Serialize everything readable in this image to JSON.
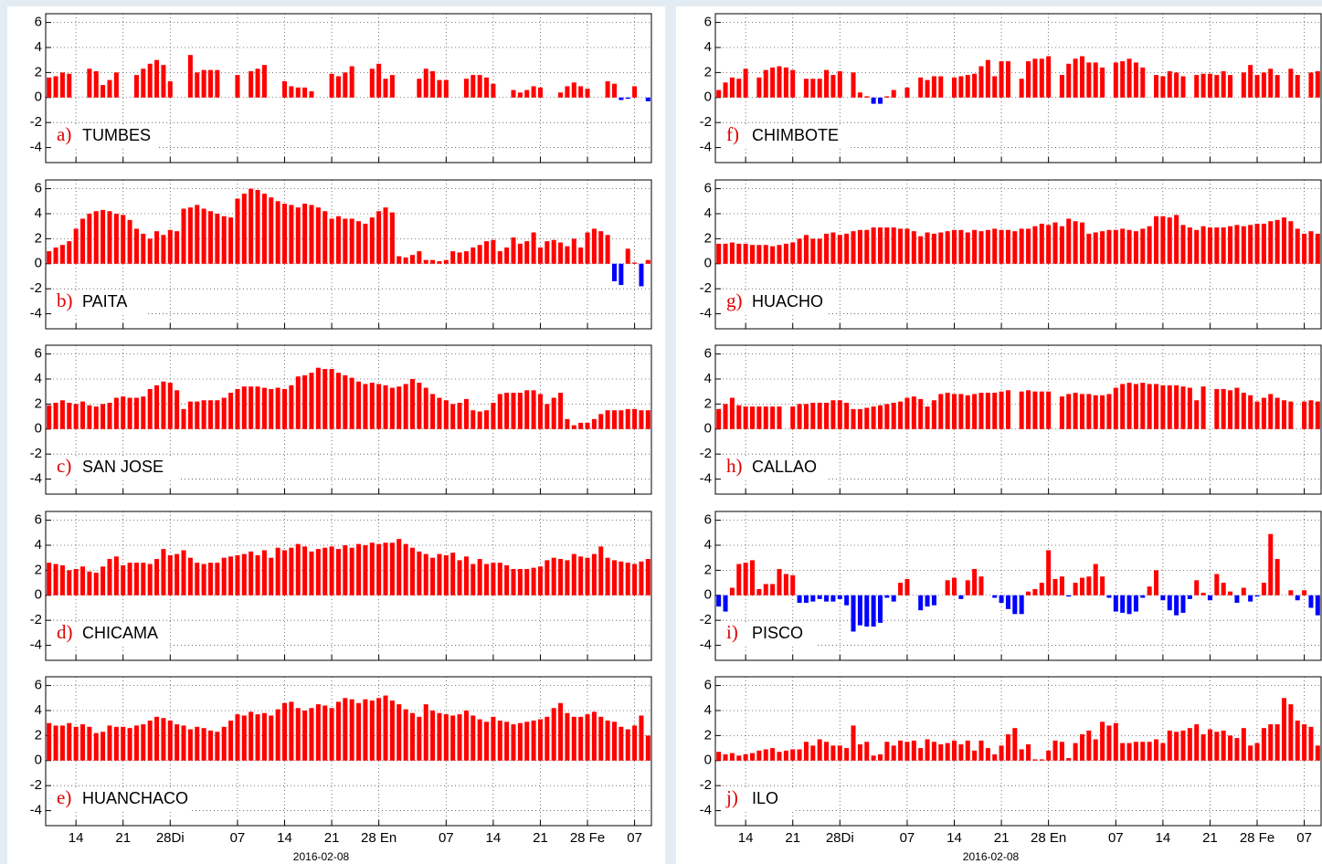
{
  "chart_data": [
    {
      "type": "bar",
      "panel": "a)",
      "title": "TUMBES",
      "color": "#ff0000",
      "negative_color": "#0000ff",
      "ylim": [
        -5.2,
        6.7
      ],
      "yticks": [
        -4,
        -2,
        0,
        2,
        4,
        6
      ],
      "grid": true,
      "values": [
        1.6,
        1.7,
        2.0,
        1.9,
        null,
        null,
        2.3,
        2.1,
        1.0,
        1.4,
        2.0,
        null,
        null,
        1.8,
        2.3,
        2.7,
        3.0,
        2.6,
        1.3,
        null,
        null,
        3.4,
        2.0,
        2.2,
        2.2,
        2.2,
        null,
        null,
        1.8,
        null,
        2.1,
        2.3,
        2.6,
        null,
        null,
        1.3,
        0.9,
        0.8,
        0.8,
        0.5,
        null,
        null,
        1.9,
        1.7,
        2.0,
        2.5,
        null,
        null,
        2.3,
        2.7,
        1.5,
        1.8,
        null,
        null,
        null,
        1.5,
        2.3,
        2.1,
        1.4,
        1.4,
        null,
        null,
        1.5,
        1.8,
        1.8,
        1.6,
        1.1,
        null,
        null,
        0.6,
        0.4,
        0.6,
        0.9,
        0.8,
        null,
        null,
        0.4,
        0.9,
        1.2,
        0.9,
        0.7,
        null,
        null,
        1.3,
        1.1,
        -0.2,
        -0.1,
        0.9,
        null,
        -0.3
      ]
    },
    {
      "type": "bar",
      "panel": "b)",
      "title": "PAITA",
      "color": "#ff0000",
      "negative_color": "#0000ff",
      "ylim": [
        -5.2,
        6.7
      ],
      "yticks": [
        -4,
        -2,
        0,
        2,
        4,
        6
      ],
      "grid": true,
      "values": [
        1.0,
        1.3,
        1.5,
        1.8,
        2.8,
        3.6,
        4.0,
        4.2,
        4.3,
        4.2,
        4.0,
        3.9,
        3.5,
        2.8,
        2.4,
        2.0,
        2.6,
        2.3,
        2.7,
        2.6,
        4.4,
        4.5,
        4.7,
        4.4,
        4.2,
        4.0,
        3.8,
        3.7,
        5.2,
        5.6,
        6.0,
        5.9,
        5.6,
        5.3,
        5.0,
        4.8,
        4.7,
        4.5,
        4.8,
        4.7,
        4.5,
        4.2,
        3.6,
        3.8,
        3.6,
        3.6,
        3.4,
        3.2,
        3.7,
        4.2,
        4.5,
        4.1,
        0.6,
        0.5,
        0.7,
        1.0,
        0.3,
        0.3,
        0.2,
        0.3,
        1.0,
        0.9,
        1.0,
        1.3,
        1.5,
        1.8,
        1.9,
        1.0,
        1.3,
        2.1,
        1.6,
        1.8,
        2.5,
        1.3,
        1.8,
        1.9,
        1.7,
        1.4,
        2.0,
        1.3,
        2.5,
        2.8,
        2.6,
        2.3,
        -1.4,
        -1.7,
        1.2,
        0.1,
        -1.8,
        0.3
      ]
    },
    {
      "type": "bar",
      "panel": "c)",
      "title": "SAN JOSE",
      "color": "#ff0000",
      "negative_color": "#0000ff",
      "ylim": [
        -5.2,
        6.7
      ],
      "yticks": [
        -4,
        -2,
        0,
        2,
        4,
        6
      ],
      "grid": true,
      "values": [
        1.9,
        2.1,
        2.3,
        2.1,
        2.0,
        2.2,
        1.9,
        1.8,
        2.0,
        2.1,
        2.5,
        2.6,
        2.5,
        2.5,
        2.6,
        3.2,
        3.5,
        3.8,
        3.7,
        3.1,
        1.6,
        2.2,
        2.2,
        2.3,
        2.3,
        2.3,
        2.5,
        2.9,
        3.2,
        3.4,
        3.4,
        3.4,
        3.3,
        3.2,
        3.3,
        3.2,
        3.5,
        4.2,
        4.3,
        4.5,
        4.9,
        4.8,
        4.8,
        4.5,
        4.3,
        4.1,
        3.8,
        3.6,
        3.7,
        3.6,
        3.5,
        3.3,
        3.4,
        3.6,
        4.0,
        3.7,
        3.3,
        2.8,
        2.5,
        2.3,
        2.0,
        2.1,
        2.4,
        1.5,
        1.4,
        1.5,
        2.1,
        2.8,
        2.9,
        2.9,
        2.9,
        3.1,
        3.1,
        2.8,
        2.0,
        2.5,
        2.9,
        0.8,
        0.3,
        0.5,
        0.5,
        0.8,
        1.2,
        1.5,
        1.5,
        1.5,
        1.6,
        1.6,
        1.5,
        1.5
      ]
    },
    {
      "type": "bar",
      "panel": "d)",
      "title": "CHICAMA",
      "color": "#ff0000",
      "negative_color": "#0000ff",
      "ylim": [
        -5.2,
        6.7
      ],
      "yticks": [
        -4,
        -2,
        0,
        2,
        4,
        6
      ],
      "grid": true,
      "values": [
        2.6,
        2.5,
        2.4,
        2.0,
        2.1,
        2.3,
        1.9,
        1.8,
        2.3,
        2.9,
        3.1,
        2.4,
        2.6,
        2.6,
        2.6,
        2.5,
        2.9,
        3.7,
        3.2,
        3.3,
        3.6,
        3.0,
        2.6,
        2.5,
        2.6,
        2.6,
        3.0,
        3.1,
        3.2,
        3.3,
        3.5,
        3.2,
        3.6,
        3.0,
        3.8,
        3.6,
        3.8,
        4.1,
        3.9,
        3.5,
        3.7,
        3.8,
        3.9,
        3.7,
        4.0,
        3.8,
        4.1,
        4.0,
        4.2,
        4.1,
        4.2,
        4.2,
        4.5,
        4.1,
        3.8,
        3.5,
        3.3,
        3.0,
        3.3,
        3.2,
        3.4,
        2.8,
        3.1,
        2.5,
        2.9,
        2.5,
        2.6,
        2.6,
        2.4,
        2.1,
        2.1,
        2.1,
        2.2,
        2.3,
        2.8,
        3.0,
        2.9,
        2.8,
        3.3,
        3.1,
        3.0,
        3.3,
        3.9,
        3.0,
        2.8,
        2.7,
        2.6,
        2.5,
        2.7,
        2.9
      ]
    },
    {
      "type": "bar",
      "panel": "e)",
      "title": "HUANCHACO",
      "color": "#ff0000",
      "negative_color": "#0000ff",
      "ylim": [
        -5.2,
        6.7
      ],
      "yticks": [
        -4,
        -2,
        0,
        2,
        4,
        6
      ],
      "grid": true,
      "categories": [
        null,
        null,
        null,
        null,
        "14",
        null,
        null,
        null,
        null,
        null,
        null,
        "21",
        null,
        null,
        null,
        null,
        null,
        null,
        "28Di",
        null,
        null,
        null,
        null,
        null,
        null,
        null,
        null,
        null,
        "07",
        null,
        null,
        null,
        null,
        null,
        null,
        "14",
        null,
        null,
        null,
        null,
        null,
        null,
        "21",
        null,
        null,
        null,
        null,
        null,
        null,
        "28 En",
        null,
        null,
        null,
        null,
        null,
        null,
        null,
        null,
        null,
        "07",
        null,
        null,
        null,
        null,
        null,
        null,
        "14",
        null,
        null,
        null,
        null,
        null,
        null,
        "21",
        null,
        null,
        null,
        null,
        null,
        null,
        "28 Fe",
        null,
        null,
        null,
        null,
        null,
        null,
        "07",
        null,
        null
      ],
      "xlabel": "2016-02-08",
      "values": [
        3.0,
        2.8,
        2.8,
        3.0,
        2.7,
        2.9,
        2.7,
        2.2,
        2.3,
        2.8,
        2.7,
        2.7,
        2.6,
        2.8,
        2.9,
        3.2,
        3.5,
        3.4,
        3.2,
        2.9,
        2.8,
        2.5,
        2.7,
        2.6,
        2.4,
        2.3,
        2.7,
        3.2,
        3.7,
        3.6,
        3.9,
        3.7,
        3.8,
        3.6,
        4.1,
        4.6,
        4.7,
        4.2,
        4.0,
        4.2,
        4.5,
        4.4,
        4.2,
        4.7,
        5.0,
        4.9,
        4.6,
        4.9,
        4.8,
        5.0,
        5.2,
        4.8,
        4.5,
        4.1,
        3.8,
        3.5,
        4.5,
        4.0,
        3.8,
        3.7,
        3.6,
        3.7,
        4.0,
        3.6,
        3.3,
        3.1,
        3.5,
        3.2,
        3.1,
        2.9,
        3.0,
        3.1,
        3.2,
        3.3,
        3.5,
        4.2,
        4.6,
        3.8,
        3.5,
        3.5,
        3.7,
        3.9,
        3.5,
        3.2,
        3.1,
        2.7,
        2.5,
        2.8,
        3.6,
        2.0
      ]
    },
    {
      "type": "bar",
      "panel": "f)",
      "title": "CHIMBOTE",
      "color": "#ff0000",
      "negative_color": "#0000ff",
      "ylim": [
        -5.2,
        6.7
      ],
      "yticks": [
        -4,
        -2,
        0,
        2,
        4,
        6
      ],
      "grid": true,
      "values": [
        0.6,
        1.2,
        1.6,
        1.5,
        2.3,
        null,
        1.6,
        2.2,
        2.4,
        2.5,
        2.4,
        2.2,
        null,
        1.5,
        1.5,
        1.5,
        2.2,
        1.8,
        2.1,
        null,
        2.0,
        0.4,
        0.1,
        -0.5,
        -0.5,
        0.1,
        0.6,
        null,
        0.8,
        null,
        1.6,
        1.4,
        1.7,
        1.7,
        null,
        1.6,
        1.7,
        1.8,
        1.9,
        2.5,
        3.0,
        1.7,
        2.9,
        2.9,
        null,
        1.5,
        2.9,
        3.1,
        3.1,
        3.3,
        null,
        1.8,
        2.7,
        3.1,
        3.3,
        2.8,
        2.8,
        2.4,
        null,
        2.8,
        2.9,
        3.1,
        2.8,
        2.4,
        null,
        1.8,
        1.7,
        2.1,
        2.0,
        1.7,
        null,
        1.8,
        1.9,
        1.9,
        1.8,
        2.1,
        1.8,
        null,
        2.0,
        2.6,
        1.8,
        2.0,
        2.3,
        1.8,
        null,
        2.3,
        1.8,
        null,
        2.0,
        2.1
      ]
    },
    {
      "type": "bar",
      "panel": "g)",
      "title": "HUACHO",
      "color": "#ff0000",
      "negative_color": "#0000ff",
      "ylim": [
        -5.2,
        6.7
      ],
      "yticks": [
        -4,
        -2,
        0,
        2,
        4,
        6
      ],
      "grid": true,
      "values": [
        1.6,
        1.6,
        1.7,
        1.6,
        1.6,
        1.5,
        1.5,
        1.5,
        1.4,
        1.5,
        1.6,
        1.7,
        2.0,
        2.3,
        2.0,
        2.0,
        2.4,
        2.5,
        2.3,
        2.4,
        2.6,
        2.7,
        2.7,
        2.9,
        2.9,
        2.9,
        2.9,
        2.8,
        2.8,
        2.6,
        2.2,
        2.5,
        2.4,
        2.5,
        2.6,
        2.7,
        2.7,
        2.5,
        2.7,
        2.6,
        2.7,
        2.8,
        2.7,
        2.7,
        2.6,
        2.8,
        2.8,
        3.0,
        3.2,
        3.1,
        3.3,
        3.0,
        3.6,
        3.4,
        3.3,
        2.4,
        2.5,
        2.6,
        2.7,
        2.7,
        2.8,
        2.7,
        2.6,
        2.8,
        3.0,
        3.8,
        3.8,
        3.7,
        3.9,
        3.1,
        2.9,
        2.7,
        3.0,
        2.9,
        2.9,
        2.9,
        3.0,
        3.1,
        3.0,
        3.1,
        3.2,
        3.2,
        3.4,
        3.5,
        3.7,
        3.4,
        2.8,
        2.4,
        2.6,
        2.4
      ]
    },
    {
      "type": "bar",
      "panel": "h)",
      "title": "CALLAO",
      "color": "#ff0000",
      "negative_color": "#0000ff",
      "ylim": [
        -5.2,
        6.7
      ],
      "yticks": [
        -4,
        -2,
        0,
        2,
        4,
        6
      ],
      "grid": true,
      "values": [
        1.6,
        2.0,
        2.5,
        1.9,
        1.8,
        1.8,
        1.8,
        1.8,
        1.8,
        1.8,
        null,
        1.8,
        2.0,
        2.0,
        2.1,
        2.1,
        2.1,
        2.3,
        2.3,
        2.1,
        1.6,
        1.6,
        1.7,
        1.8,
        1.9,
        2.0,
        2.1,
        2.2,
        2.5,
        2.6,
        2.4,
        1.8,
        2.3,
        2.8,
        2.9,
        2.8,
        2.8,
        2.7,
        2.8,
        2.9,
        2.9,
        2.9,
        3.0,
        3.1,
        null,
        3.0,
        3.1,
        3.0,
        3.0,
        3.0,
        null,
        2.6,
        2.8,
        2.9,
        2.8,
        2.8,
        2.7,
        2.7,
        2.8,
        3.3,
        3.6,
        3.7,
        3.6,
        3.7,
        3.6,
        3.6,
        3.5,
        3.5,
        3.5,
        3.4,
        3.3,
        2.3,
        3.4,
        null,
        3.2,
        3.2,
        3.1,
        3.3,
        2.9,
        2.7,
        2.2,
        2.5,
        2.8,
        2.5,
        2.3,
        2.2,
        null,
        2.2,
        2.3,
        2.2
      ]
    },
    {
      "type": "bar",
      "panel": "i)",
      "title": "PISCO",
      "color": "#ff0000",
      "negative_color": "#0000ff",
      "ylim": [
        -5.2,
        6.7
      ],
      "yticks": [
        -4,
        -2,
        0,
        2,
        4,
        6
      ],
      "grid": true,
      "values": [
        -0.9,
        -1.3,
        0.6,
        2.5,
        2.6,
        2.8,
        0.5,
        0.9,
        0.9,
        2.1,
        1.7,
        1.6,
        -0.6,
        -0.6,
        -0.5,
        -0.3,
        -0.5,
        -0.5,
        -0.3,
        -0.8,
        -2.9,
        -2.4,
        -2.5,
        -2.5,
        -2.2,
        -0.2,
        -0.5,
        1.0,
        1.3,
        0.0,
        -1.2,
        -0.9,
        -0.8,
        0.0,
        1.2,
        1.4,
        -0.3,
        1.2,
        2.1,
        1.5,
        0.0,
        -0.2,
        -0.6,
        -1.1,
        -1.5,
        -1.5,
        0.3,
        0.5,
        1.0,
        3.6,
        1.3,
        1.5,
        -0.1,
        1.0,
        1.4,
        1.5,
        2.5,
        1.5,
        -0.2,
        -1.3,
        -1.4,
        -1.5,
        -1.3,
        -0.2,
        0.7,
        2.0,
        -0.4,
        -1.2,
        -1.6,
        -1.4,
        -0.3,
        1.2,
        0.2,
        -0.4,
        1.7,
        1.0,
        0.3,
        -0.6,
        0.6,
        -0.5,
        -0.1,
        1.0,
        4.9,
        2.9,
        0.0,
        0.4,
        -0.4,
        0.4,
        -1.0,
        -1.6
      ]
    },
    {
      "type": "bar",
      "panel": "j)",
      "title": "ILO",
      "color": "#ff0000",
      "negative_color": "#0000ff",
      "ylim": [
        -5.2,
        6.7
      ],
      "yticks": [
        -4,
        -2,
        0,
        2,
        4,
        6
      ],
      "grid": true,
      "categories": [
        null,
        null,
        null,
        null,
        "14",
        null,
        null,
        null,
        null,
        null,
        null,
        "21",
        null,
        null,
        null,
        null,
        null,
        null,
        "28Di",
        null,
        null,
        null,
        null,
        null,
        null,
        null,
        null,
        null,
        "07",
        null,
        null,
        null,
        null,
        null,
        null,
        "14",
        null,
        null,
        null,
        null,
        null,
        null,
        "21",
        null,
        null,
        null,
        null,
        null,
        null,
        "28 En",
        null,
        null,
        null,
        null,
        null,
        null,
        null,
        null,
        null,
        "07",
        null,
        null,
        null,
        null,
        null,
        null,
        "14",
        null,
        null,
        null,
        null,
        null,
        null,
        "21",
        null,
        null,
        null,
        null,
        null,
        null,
        "28 Fe",
        null,
        null,
        null,
        null,
        null,
        null,
        "07",
        null,
        null
      ],
      "xlabel": "2016-02-08",
      "values": [
        0.7,
        0.5,
        0.6,
        0.4,
        0.5,
        0.6,
        0.8,
        0.9,
        1.0,
        0.7,
        0.8,
        0.9,
        0.9,
        1.5,
        1.2,
        1.7,
        1.5,
        1.2,
        1.2,
        1.0,
        2.8,
        1.3,
        1.5,
        0.4,
        0.5,
        1.5,
        1.2,
        1.6,
        1.5,
        1.6,
        1.0,
        1.7,
        1.5,
        1.3,
        1.4,
        1.6,
        1.3,
        1.6,
        0.8,
        1.6,
        1.0,
        0.5,
        1.2,
        2.1,
        2.6,
        0.9,
        1.3,
        0.1,
        0.1,
        0.8,
        1.6,
        1.5,
        0.2,
        1.4,
        2.1,
        2.4,
        1.7,
        3.1,
        2.8,
        3.0,
        1.4,
        1.4,
        1.5,
        1.5,
        1.5,
        1.7,
        1.4,
        2.4,
        2.3,
        2.4,
        2.6,
        2.9,
        2.1,
        2.5,
        2.3,
        2.4,
        2.0,
        1.8,
        2.6,
        1.2,
        1.4,
        2.6,
        2.9,
        2.9,
        5.0,
        4.5,
        3.2,
        2.9,
        2.7,
        1.2
      ]
    }
  ]
}
